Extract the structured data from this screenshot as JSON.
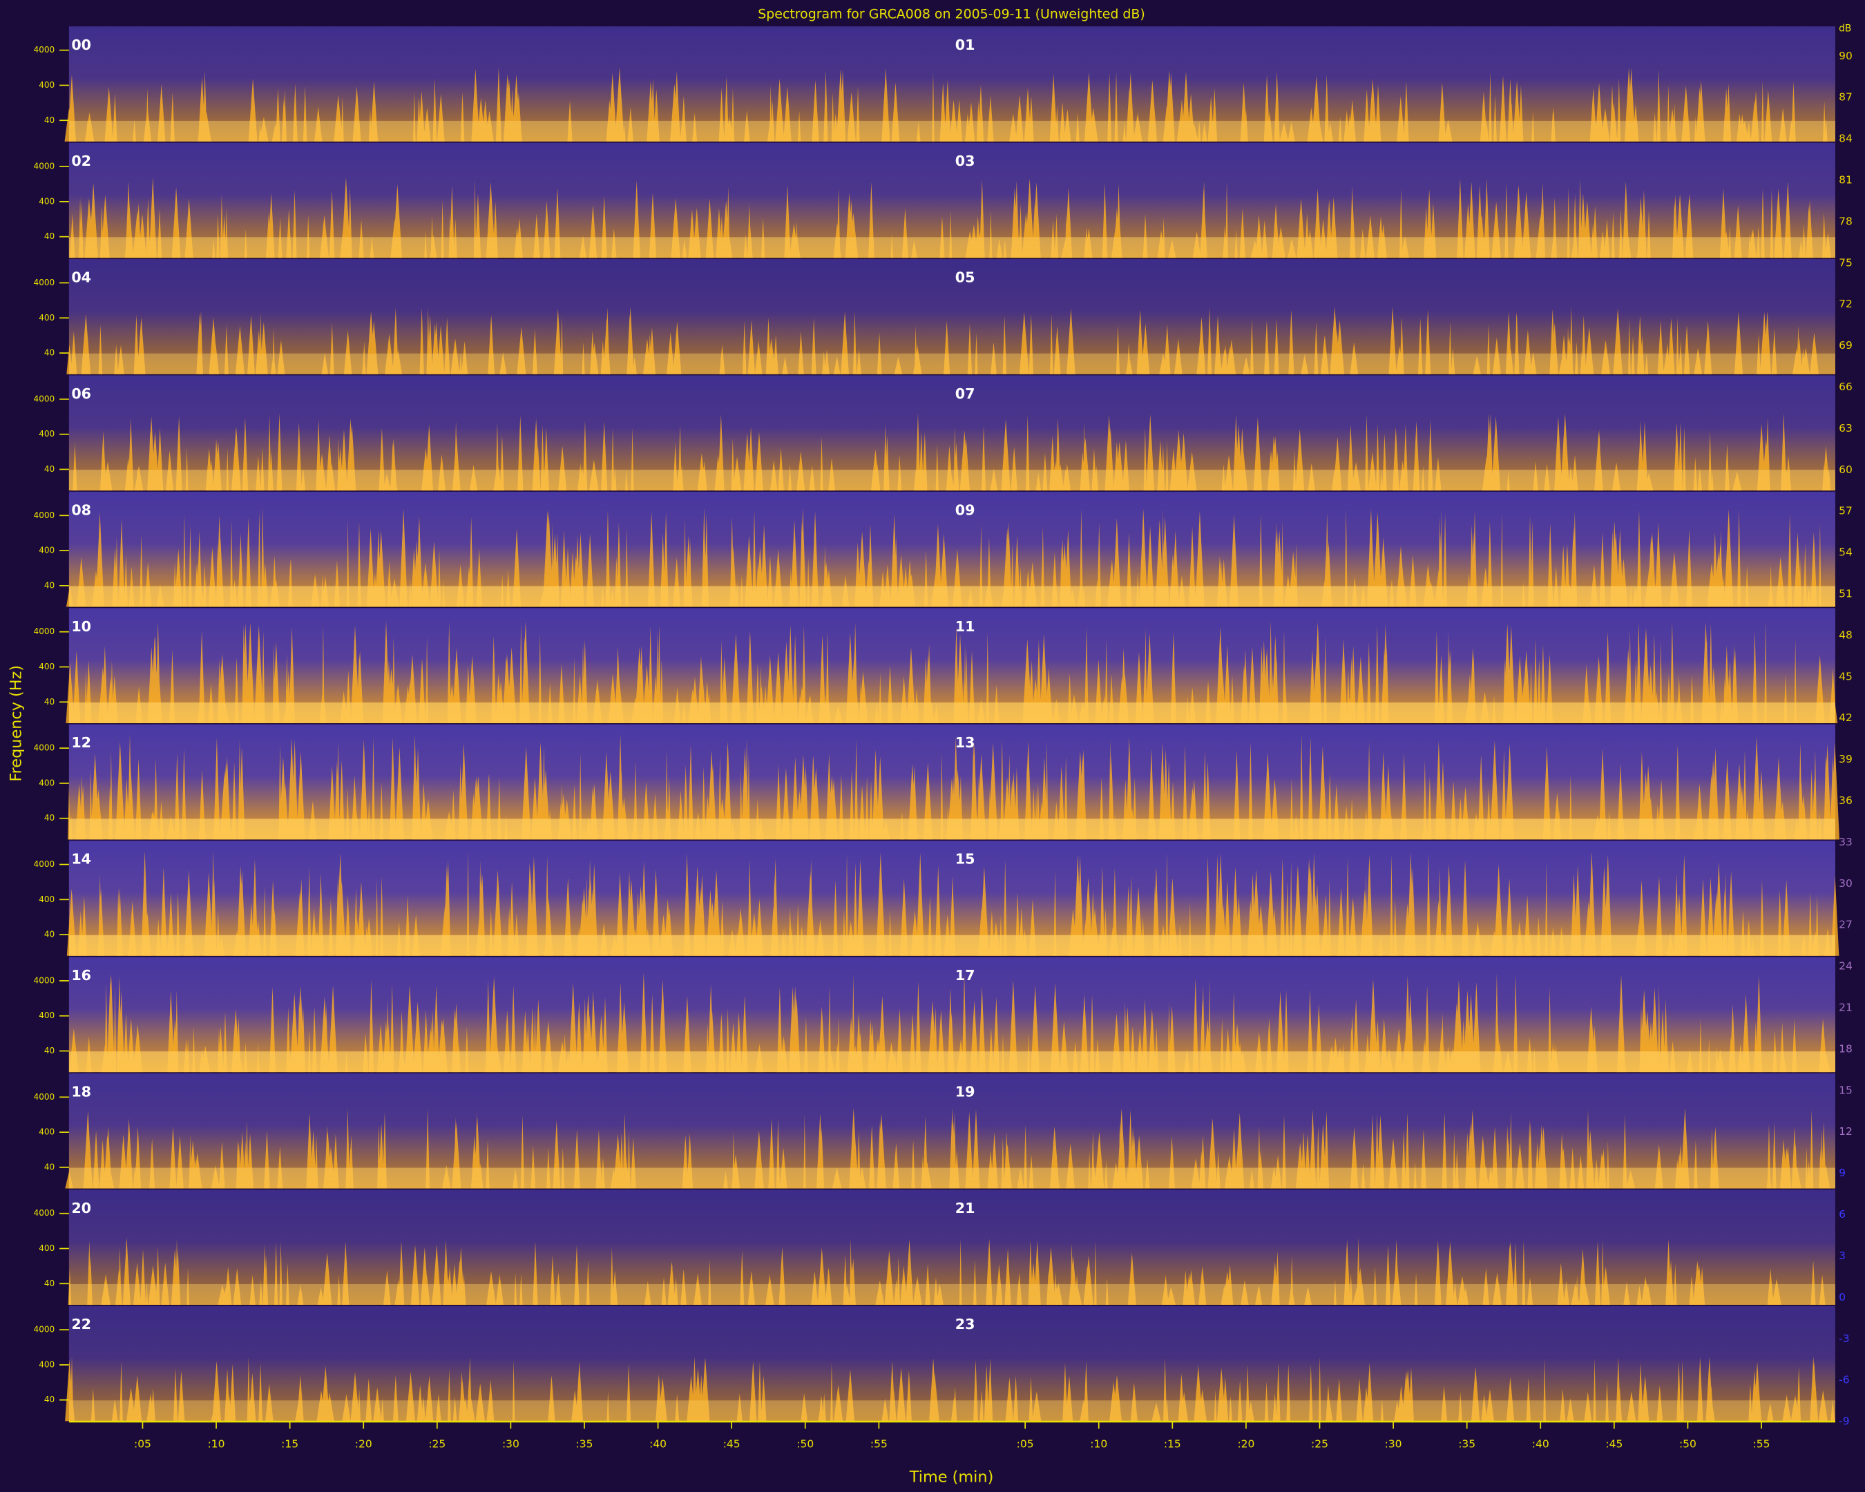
{
  "header": {
    "title": "Spectrogram for GRCA008 on 2005-09-11 (Unweighted dB)"
  },
  "axes": {
    "y_label": "Frequency (Hz)",
    "x_label": "Time (min)",
    "y_ticks": [
      "4000",
      "400",
      "40"
    ],
    "x_ticks": [
      ":05",
      ":10",
      ":15",
      ":20",
      ":25",
      ":30",
      ":35",
      ":40",
      ":45",
      ":50",
      ":55"
    ]
  },
  "hours": [
    "00",
    "01",
    "02",
    "03",
    "04",
    "05",
    "06",
    "07",
    "08",
    "09",
    "10",
    "11",
    "12",
    "13",
    "14",
    "15",
    "16",
    "17",
    "18",
    "19",
    "20",
    "21",
    "22",
    "23"
  ],
  "colorbar": {
    "unit": "dB",
    "ticks": [
      "90",
      "87",
      "84",
      "81",
      "78",
      "75",
      "72",
      "69",
      "66",
      "63",
      "60",
      "57",
      "54",
      "51",
      "48",
      "45",
      "42",
      "39",
      "36",
      "33",
      "30",
      "27",
      "24",
      "21",
      "18",
      "15",
      "12",
      "9",
      "6",
      "3",
      "0",
      "-3",
      "-6",
      "-9"
    ]
  }
}
